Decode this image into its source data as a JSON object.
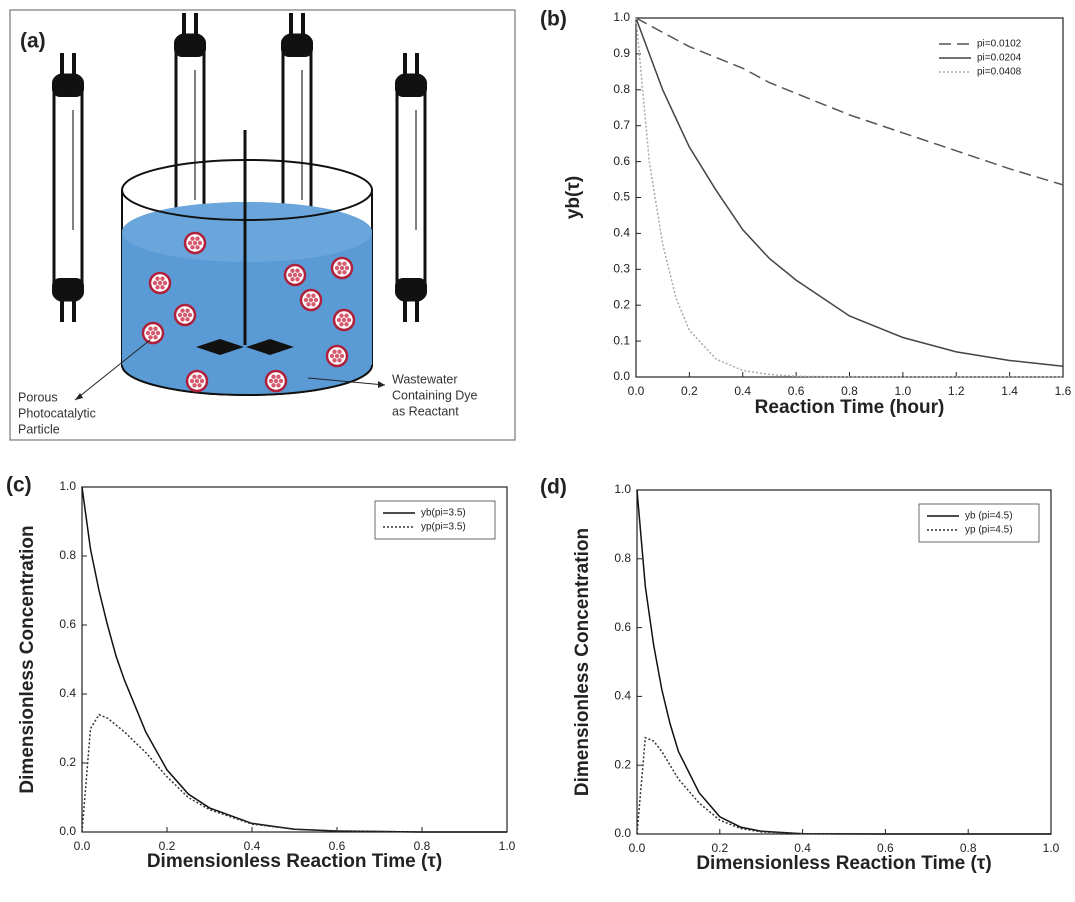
{
  "diagram": {
    "label": "(a)",
    "annotations": [
      [
        "Porous",
        "Photocatalytic",
        "Particle"
      ],
      [
        "Wastewater",
        "Containing Dye",
        "as Reactant"
      ]
    ]
  },
  "chart_data": [
    {
      "type": "line",
      "label": "(b)",
      "xlabel": "Reaction Time (hour)",
      "ylabel": "yb(τ)",
      "legend": "upper right",
      "legend_box": false,
      "x": [
        0,
        0.05,
        0.1,
        0.15,
        0.2,
        0.3,
        0.4,
        0.5,
        0.6,
        0.8,
        1.0,
        1.2,
        1.4,
        1.6
      ],
      "series": [
        {
          "name": "pi=0.0102",
          "color": "#555555",
          "dash": "dashed",
          "values": [
            1,
            0.98,
            0.96,
            0.94,
            0.92,
            0.89,
            0.86,
            0.82,
            0.79,
            0.73,
            0.68,
            0.63,
            0.58,
            0.535
          ]
        },
        {
          "name": "pi=0.0204",
          "color": "#444444",
          "dash": "solid",
          "values": [
            1,
            0.9,
            0.8,
            0.72,
            0.64,
            0.52,
            0.41,
            0.33,
            0.27,
            0.17,
            0.11,
            0.07,
            0.046,
            0.03
          ]
        },
        {
          "name": "pi=0.0408",
          "color": "#aaaaaa",
          "dash": "dotted",
          "values": [
            1,
            0.6,
            0.37,
            0.22,
            0.13,
            0.05,
            0.018,
            0.007,
            0.002,
            0,
            0,
            0,
            0,
            0
          ]
        }
      ],
      "xlim": [
        0,
        1.6
      ],
      "xticks": [
        {
          "value": 0,
          "label": "0.0"
        },
        0.2,
        0.4,
        0.6,
        0.8,
        {
          "value": 1,
          "label": "1.0"
        },
        1.2,
        1.4,
        1.6
      ],
      "ylim": [
        0,
        1
      ],
      "yticks": [
        {
          "value": 0,
          "label": "0.0"
        },
        0.1,
        0.2,
        0.3,
        0.4,
        0.5,
        0.6,
        0.7,
        0.8,
        0.9,
        {
          "value": 1,
          "label": "1.0"
        }
      ]
    },
    {
      "type": "line",
      "label": "(c)",
      "xlabel": "Dimensionless Reaction Time (τ)",
      "ylabel": "Dimensionless Concentration",
      "legend": "upper right",
      "legend_box": true,
      "x": [
        0,
        0.02,
        0.04,
        0.06,
        0.08,
        0.1,
        0.15,
        0.2,
        0.25,
        0.3,
        0.4,
        0.5,
        0.6,
        0.8,
        1.0
      ],
      "series": [
        {
          "name": "yb(pi=3.5)",
          "color": "#111111",
          "dash": "solid",
          "values": [
            1,
            0.82,
            0.7,
            0.6,
            0.51,
            0.44,
            0.29,
            0.18,
            0.11,
            0.07,
            0.025,
            0.008,
            0.003,
            0,
            0
          ]
        },
        {
          "name": "yp(pi=3.5)",
          "color": "#333333",
          "dash": "dotted",
          "values": [
            0,
            0.3,
            0.34,
            0.33,
            0.31,
            0.29,
            0.23,
            0.16,
            0.1,
            0.065,
            0.023,
            0.008,
            0.003,
            0,
            0
          ]
        }
      ],
      "xlim": [
        0,
        1
      ],
      "xticks": [
        {
          "value": 0,
          "label": "0.0"
        },
        0.2,
        0.4,
        0.6,
        0.8,
        {
          "value": 1,
          "label": "1.0"
        }
      ],
      "ylim": [
        0,
        1
      ],
      "yticks": [
        {
          "value": 0,
          "label": "0.0"
        },
        0.2,
        0.4,
        0.6,
        0.8,
        {
          "value": 1,
          "label": "1.0"
        }
      ]
    },
    {
      "type": "line",
      "label": "(d)",
      "xlabel": "Dimensionless Reaction Time (τ)",
      "ylabel": "Dimensionless Concentration",
      "legend": "upper right",
      "legend_box": true,
      "x": [
        0,
        0.02,
        0.04,
        0.06,
        0.08,
        0.1,
        0.15,
        0.2,
        0.25,
        0.3,
        0.4,
        0.6,
        0.8,
        1.0
      ],
      "series": [
        {
          "name": "yb (pi=4.5)",
          "color": "#111111",
          "dash": "solid",
          "values": [
            1,
            0.72,
            0.55,
            0.42,
            0.32,
            0.24,
            0.12,
            0.05,
            0.02,
            0.008,
            0.001,
            0,
            0,
            0
          ]
        },
        {
          "name": "yp (pi=4.5)",
          "color": "#333333",
          "dash": "dotted",
          "values": [
            0,
            0.28,
            0.27,
            0.24,
            0.2,
            0.16,
            0.09,
            0.04,
            0.016,
            0.006,
            0.001,
            0,
            0,
            0
          ]
        }
      ],
      "xlim": [
        0,
        1
      ],
      "xticks": [
        {
          "value": 0,
          "label": "0.0"
        },
        0.2,
        0.4,
        0.6,
        0.8,
        {
          "value": 1,
          "label": "1.0"
        }
      ],
      "ylim": [
        0,
        1
      ],
      "yticks": [
        {
          "value": 0,
          "label": "0.0"
        },
        0.2,
        0.4,
        0.6,
        0.8,
        {
          "value": 1,
          "label": "1.0"
        }
      ]
    }
  ]
}
